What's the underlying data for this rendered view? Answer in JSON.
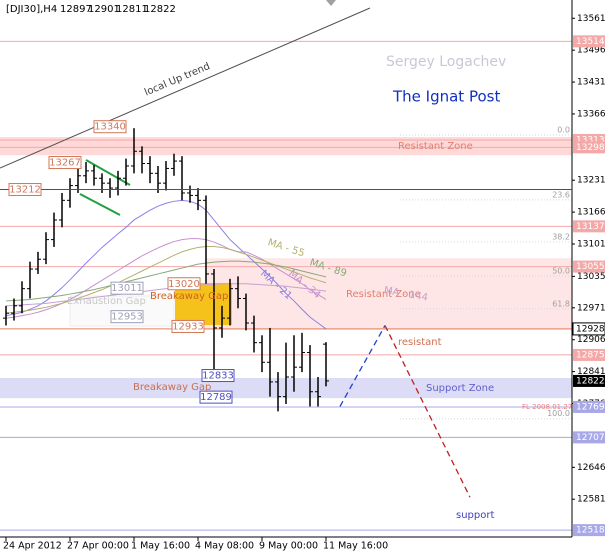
{
  "chart_data": {
    "type": "ohlc",
    "symbol": "[DJI30],H4",
    "author": "Sergey Logachev",
    "brand": "The Ignat Post",
    "categories": [
      "24 Apr 2012",
      null,
      null,
      null,
      null,
      null,
      null,
      null,
      "27 Apr 00:00",
      null,
      null,
      null,
      null,
      null,
      null,
      null,
      "1 May 16:00",
      null,
      null,
      null,
      null,
      null,
      null,
      null,
      "4 May 08:00",
      null,
      null,
      null,
      null,
      null,
      null,
      null,
      "9 May 00:00",
      null,
      null,
      null,
      null,
      null,
      null,
      null,
      "11 May 16:00"
    ],
    "open": [
      12950,
      12960,
      12975,
      13010,
      13050,
      13070,
      13110,
      13150,
      13190,
      13220,
      13240,
      13250,
      13235,
      13225,
      13215,
      13235,
      13260,
      13290,
      13265,
      13245,
      13225,
      13255,
      13270,
      13205,
      13200,
      13190,
      13040,
      12930,
      12950,
      13010,
      12990,
      12940,
      12900,
      12860,
      12820,
      12790,
      12830,
      12850,
      12880,
      12800,
      12897
    ],
    "high": [
      12975,
      12990,
      13025,
      13065,
      13085,
      13125,
      13165,
      13205,
      13235,
      13260,
      13268,
      13262,
      13245,
      13235,
      13250,
      13275,
      13337,
      13300,
      13280,
      13260,
      13270,
      13285,
      13280,
      13220,
      13215,
      13200,
      13050,
      12975,
      13030,
      13035,
      13000,
      12955,
      12915,
      12930,
      12840,
      12900,
      12915,
      12920,
      12895,
      12830,
      12901
    ],
    "low": [
      12935,
      12945,
      12960,
      12990,
      13040,
      13060,
      13095,
      13135,
      13175,
      13205,
      13225,
      13220,
      13205,
      13195,
      13200,
      13220,
      13245,
      13245,
      13225,
      13205,
      13210,
      13240,
      13190,
      13185,
      13170,
      13020,
      12845,
      12910,
      12935,
      12970,
      12925,
      12880,
      12840,
      12790,
      12760,
      12775,
      12800,
      12840,
      12770,
      12770,
      12811
    ],
    "close": [
      12960,
      12975,
      13010,
      13050,
      13070,
      13110,
      13150,
      13190,
      13220,
      13240,
      13250,
      13235,
      13225,
      13215,
      13235,
      13260,
      13290,
      13265,
      13245,
      13225,
      13255,
      13270,
      13205,
      13200,
      13190,
      13040,
      12930,
      12950,
      13010,
      12990,
      12940,
      12900,
      12860,
      12820,
      12790,
      12830,
      12850,
      12880,
      12800,
      12790,
      12822
    ],
    "bar_color": "#000000",
    "series": [
      {
        "name": "MA - 21",
        "color": "#8a80e8",
        "values": [
          12955,
          12958,
          12962,
          12968,
          12975,
          12985,
          12998,
          13012,
          13028,
          13045,
          13062,
          13078,
          13094,
          13108,
          13122,
          13135,
          13150,
          13160,
          13170,
          13178,
          13184,
          13188,
          13190,
          13188,
          13182,
          13170,
          13150,
          13130,
          13110,
          13095,
          13080,
          13065,
          13050,
          13035,
          13018,
          13000,
          12985,
          12968,
          12952,
          12940,
          12928
        ]
      },
      {
        "name": "MA - 34",
        "color": "#c890d0",
        "values": [
          12950,
          12952,
          12955,
          12958,
          12962,
          12967,
          12973,
          12980,
          12988,
          12997,
          13007,
          13017,
          13027,
          13037,
          13047,
          13057,
          13067,
          13077,
          13085,
          13093,
          13100,
          13106,
          13110,
          13112,
          13112,
          13110,
          13105,
          13098,
          13090,
          13085,
          13085,
          13078,
          13070,
          13060,
          13050,
          13040,
          13030,
          13020,
          13008,
          12998,
          12988
        ]
      },
      {
        "name": "MA - 55",
        "color": "#b4b070",
        "values": [
          12960,
          12962,
          12964,
          12966,
          12969,
          12972,
          12976,
          12980,
          12985,
          12990,
          12996,
          13002,
          13008,
          13015,
          13022,
          13030,
          13038,
          13046,
          13054,
          13062,
          13070,
          13078,
          13085,
          13090,
          13094,
          13096,
          13096,
          13094,
          13090,
          13085,
          13080,
          13074,
          13068,
          13062,
          13056,
          13050,
          13044,
          13038,
          13032,
          13027,
          13022
        ]
      },
      {
        "name": "MA - 89",
        "color": "#88a878",
        "values": [
          12985,
          12986,
          12987,
          12988,
          12990,
          12992,
          12994,
          12996,
          12999,
          13002,
          13005,
          13008,
          13012,
          13016,
          13020,
          13024,
          13028,
          13032,
          13036,
          13040,
          13044,
          13048,
          13052,
          13056,
          13060,
          13062,
          13064,
          13065,
          13066,
          13066,
          13065,
          13064,
          13062,
          13060,
          13057,
          13054,
          13050,
          13046,
          13042,
          13038,
          13034
        ]
      },
      {
        "name": "MA - 144",
        "color": "#c8a0d0",
        "values": [
          12975,
          12976,
          12977,
          12978,
          12979,
          12980,
          12982,
          12984,
          12986,
          12988,
          12990,
          12992,
          12994,
          12996,
          12998,
          13000,
          13002,
          13004,
          13006,
          13008,
          13010,
          13012,
          13014,
          13016,
          13017,
          13018,
          13019,
          13020,
          13020,
          13020,
          13020,
          13019,
          13018,
          13017,
          13016,
          13015,
          13013,
          13011,
          13009,
          13007,
          13005
        ]
      }
    ],
    "ylim": [
      12504,
      13588
    ],
    "yticks": [
      13561,
      13496,
      13431,
      13366,
      13231,
      13166,
      13101,
      13035,
      12971,
      12906,
      12841,
      12776,
      12646,
      12581
    ],
    "zones": [
      {
        "name": "Resistant Zone",
        "from": 13282,
        "to": 13319,
        "color": "#ffd8d8",
        "text_color": "#e08070"
      },
      {
        "name": "Resistant Zone",
        "from": 12926,
        "to": 13072,
        "color": "#ffe6e6",
        "text_color": "#e08070"
      },
      {
        "name": "Support Zone",
        "from": 12787,
        "to": 12828,
        "color": "#dcdcf6",
        "text_color": "#6060d0"
      }
    ],
    "levels": [
      {
        "value": 13514,
        "color": "#f4a8a8"
      },
      {
        "value": 13313,
        "color": "#f4a8a8"
      },
      {
        "value": 13298,
        "color": "#f4a8a8"
      },
      {
        "value": 13137,
        "color": "#f4a8a8"
      },
      {
        "value": 13055,
        "color": "#f4a8a8"
      },
      {
        "value": 12928,
        "color": "#e08060"
      },
      {
        "value": 12875,
        "color": "#f4a8a8"
      },
      {
        "value": 12769,
        "color": "#a8a8e8"
      },
      {
        "value": 12707,
        "color": "#a8a8e8"
      },
      {
        "value": 12518,
        "color": "#a8a8e8"
      }
    ],
    "price_labels": [
      {
        "value": 13340,
        "color": "#d07858"
      },
      {
        "value": 13267,
        "color": "#d07858"
      },
      {
        "value": 13212,
        "color": "#d07858"
      },
      {
        "value": 13020,
        "color": "#d07858"
      },
      {
        "value": 13011,
        "color": "#a0a0b8"
      },
      {
        "value": 12953,
        "color": "#a0a0b8"
      },
      {
        "value": 12933,
        "color": "#d07858"
      },
      {
        "value": 12833,
        "color": "#5050c0"
      },
      {
        "value": 12789,
        "color": "#5050c0"
      }
    ],
    "fib_levels": [
      {
        "label": "0.0",
        "value": 13323
      },
      {
        "label": "23.6",
        "value": 13191
      },
      {
        "label": "38.2",
        "value": 13105
      },
      {
        "label": "50.0",
        "value": 13036
      },
      {
        "label": "61.8",
        "value": 12969
      },
      {
        "label": "100.0",
        "value": 12745
      }
    ],
    "fib_note": "FL 2008.01.27",
    "projections": [
      {
        "color": "#2040d0",
        "from": 12770,
        "to": 12935
      },
      {
        "color": "#c02020",
        "from": 12935,
        "to": 12585
      }
    ],
    "annotations": [
      "local Up trend",
      "Exhaustion Gap",
      "Breakaway Gap",
      "Breakaway Gap",
      "resistant",
      "support"
    ]
  }
}
